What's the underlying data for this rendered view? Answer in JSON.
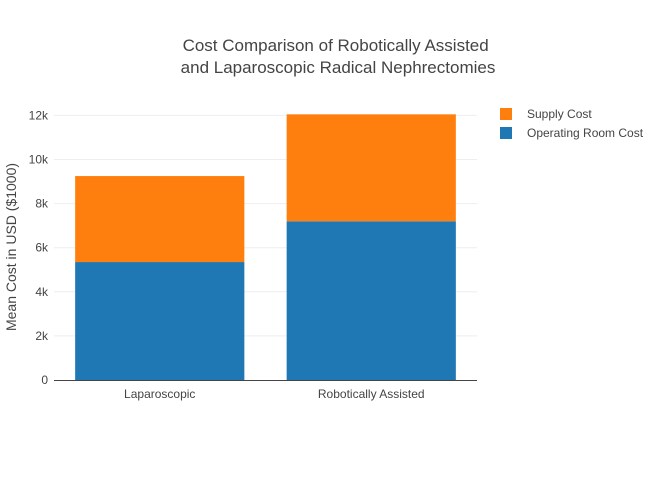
{
  "chart_data": {
    "type": "bar",
    "barmode": "stack",
    "title_lines": [
      "Cost Comparison of Robotically Assisted",
      "and Laparoscopic Radical Nephrectomies"
    ],
    "ylabel": "Mean Cost in USD ($1000)",
    "xlabel": "",
    "categories": [
      "Laparoscopic",
      "Robotically Assisted"
    ],
    "series": [
      {
        "name": "Operating Room Cost",
        "color": "#1f77b4",
        "values": [
          5350,
          7200
        ]
      },
      {
        "name": "Supply Cost",
        "color": "#ff7f0e",
        "values": [
          3900,
          4850
        ]
      }
    ],
    "legend_order": [
      "Supply Cost",
      "Operating Room Cost"
    ],
    "legend_position": "top-right",
    "ylim": [
      0,
      12700
    ],
    "yticks": [
      0,
      2000,
      4000,
      6000,
      8000,
      10000,
      12000
    ],
    "ytick_labels": [
      "0",
      "2k",
      "4k",
      "6k",
      "8k",
      "10k",
      "12k"
    ],
    "grid": true
  }
}
